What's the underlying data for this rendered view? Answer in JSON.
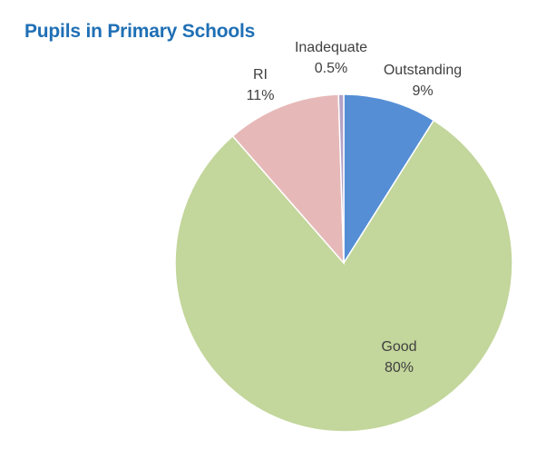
{
  "chart_data": {
    "type": "pie",
    "title": "Pupils in Primary Schools",
    "start_angle_deg": 0,
    "direction": "clockwise",
    "slices": [
      {
        "label": "Outstanding",
        "value_label": "9%",
        "value": 9,
        "color": "#558ed5"
      },
      {
        "label": "Good",
        "value_label": "80%",
        "value": 80,
        "color": "#c3d69b"
      },
      {
        "label": "RI",
        "value_label": "11%",
        "value": 11,
        "color": "#e6b9b8"
      },
      {
        "label": "Inadequate",
        "value_label": "0.5%",
        "value": 0.5,
        "color": "#b3a2c7"
      }
    ]
  }
}
